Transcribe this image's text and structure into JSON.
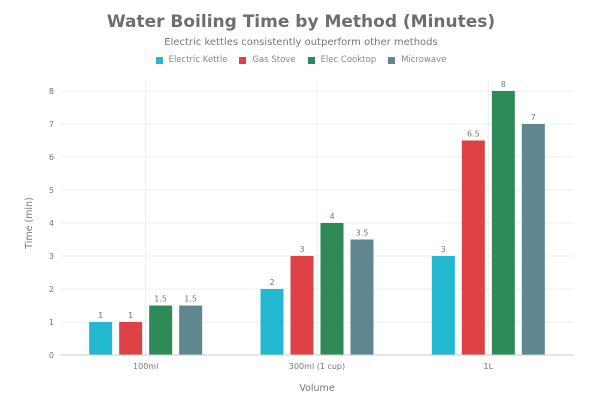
{
  "chart_data": {
    "type": "bar",
    "title": "Water Boiling Time by Method (Minutes)",
    "subtitle": "Electric kettles consistently outperform other methods",
    "xlabel": "Volume",
    "ylabel": "Time (min)",
    "ylim": [
      0,
      8
    ],
    "yticks": [
      0,
      1,
      2,
      3,
      4,
      5,
      6,
      7,
      8
    ],
    "grid": true,
    "legend_placement": "top",
    "categories": [
      "100ml",
      "300ml (1 cup)",
      "1L"
    ],
    "series": [
      {
        "name": "Electric Kettle",
        "color": "#22b8cf",
        "values": [
          1,
          2,
          3
        ]
      },
      {
        "name": "Gas Stove",
        "color": "#dc4246",
        "values": [
          1,
          3,
          6.5
        ]
      },
      {
        "name": "Elec Cooktop",
        "color": "#2e8b57",
        "values": [
          1.5,
          4,
          8
        ]
      },
      {
        "name": "Microwave",
        "color": "#5f8790",
        "values": [
          1.5,
          3.5,
          7
        ]
      }
    ]
  }
}
